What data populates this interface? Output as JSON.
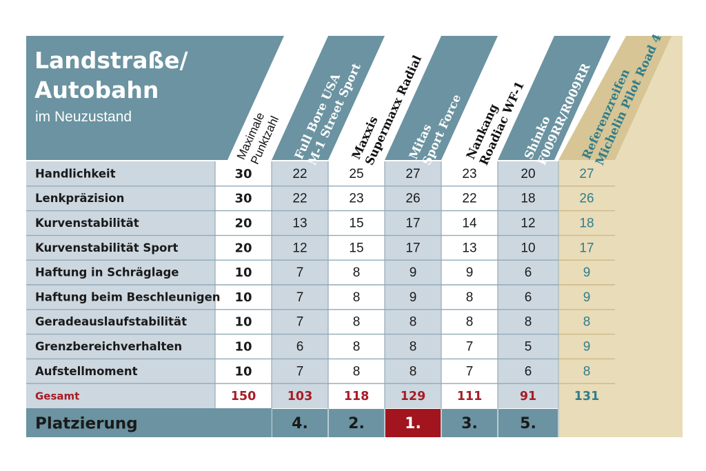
{
  "header": {
    "title_line1": "Landstraße/",
    "title_line2": "Autobahn",
    "subtitle": "im Neuzustand"
  },
  "columns": [
    {
      "line1": "Maximale",
      "line2": "Punktzahl"
    },
    {
      "line1": "Full Bore USA",
      "line2": "M-1 Street Sport"
    },
    {
      "line1": "Maxxis",
      "line2": "Supermaxx Radial"
    },
    {
      "line1": "Mitas",
      "line2": "Sport Force"
    },
    {
      "line1": "Nankang",
      "line2": "Roadiac WF-1"
    },
    {
      "line1": "Shinko",
      "line2": "F009RR/R009RR"
    },
    {
      "line1": "Referenzreifen",
      "line2": "Michelin Pilot Road 4"
    }
  ],
  "chart_data": {
    "type": "table",
    "title": "Landstraße/ Autobahn",
    "subtitle": "im Neuzustand",
    "columns": [
      "Maximale Punktzahl",
      "Full Bore USA M-1 Street Sport",
      "Maxxis Supermaxx Radial",
      "Mitas Sport Force",
      "Nankang Roadiac WF-1",
      "Shinko F009RR/R009RR",
      "Referenzreifen Michelin Pilot Road 4"
    ],
    "rows": [
      {
        "label": "Handlichkeit",
        "values": [
          "30",
          "22",
          "25",
          "27",
          "23",
          "20",
          "27"
        ]
      },
      {
        "label": "Lenkpräzision",
        "values": [
          "30",
          "22",
          "23",
          "26",
          "22",
          "18",
          "26"
        ]
      },
      {
        "label": "Kurvenstabilität",
        "values": [
          "20",
          "13",
          "15",
          "17",
          "14",
          "12",
          "18"
        ]
      },
      {
        "label": "Kurvenstabilität Sport",
        "values": [
          "20",
          "12",
          "15",
          "17",
          "13",
          "10",
          "17"
        ]
      },
      {
        "label": "Haftung in Schräglage",
        "values": [
          "10",
          "7",
          "8",
          "9",
          "9",
          "6",
          "9"
        ]
      },
      {
        "label": "Haftung beim Beschleunigen",
        "values": [
          "10",
          "7",
          "8",
          "9",
          "8",
          "6",
          "9"
        ]
      },
      {
        "label": "Geradeauslaufstabilität",
        "values": [
          "10",
          "7",
          "8",
          "8",
          "8",
          "8",
          "8"
        ]
      },
      {
        "label": "Grenzbereichverhalten",
        "values": [
          "10",
          "6",
          "8",
          "8",
          "7",
          "5",
          "9"
        ]
      },
      {
        "label": "Aufstellmoment",
        "values": [
          "10",
          "7",
          "8",
          "8",
          "7",
          "6",
          "8"
        ]
      }
    ],
    "total": {
      "label": "Gesamt",
      "values": [
        "150",
        "103",
        "118",
        "129",
        "111",
        "91",
        "131"
      ]
    },
    "ranking": {
      "label": "Platzierung",
      "values": [
        "",
        "4.",
        "2.",
        "1.",
        "3.",
        "5.",
        ""
      ]
    }
  },
  "colors": {
    "header_teal": "#6b93a1",
    "row_light": "#cdd7e0",
    "row_white": "#ffffff",
    "row_lines": "#8faab8",
    "gold_light": "#e9dcb9",
    "gold_mid": "#d7c596",
    "gold_dark": "#cdbd8b",
    "total_red": "#a71c24",
    "winner_red": "#a2141e",
    "reference_text": "#2e7d8c",
    "text_dark": "#1a1a1a"
  }
}
